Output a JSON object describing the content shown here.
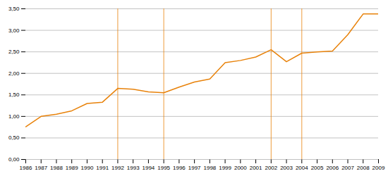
{
  "chart_data": {
    "type": "line",
    "x": [
      1986,
      1987,
      1988,
      1989,
      1990,
      1991,
      1992,
      1993,
      1994,
      1995,
      1996,
      1997,
      1998,
      1999,
      2000,
      2001,
      2002,
      2003,
      2004,
      2005,
      2006,
      2007,
      2008,
      2009
    ],
    "values": [
      0.76,
      1.0,
      1.05,
      1.13,
      1.3,
      1.33,
      1.65,
      1.63,
      1.57,
      1.55,
      1.68,
      1.8,
      1.87,
      2.25,
      2.3,
      2.38,
      2.55,
      2.27,
      2.47,
      2.5,
      2.52,
      2.9,
      3.38,
      3.38
    ],
    "color": "#E8820A",
    "xlim": [
      1986,
      2009
    ],
    "xticks": [
      1986,
      1987,
      1988,
      1989,
      1990,
      1991,
      1992,
      1993,
      1994,
      1995,
      1996,
      1997,
      1998,
      1999,
      2000,
      2001,
      2002,
      2003,
      2004,
      2005,
      2006,
      2007,
      2008,
      2009
    ],
    "ylim": [
      0.0,
      3.5
    ],
    "yticks": [
      {
        "value": 0.0,
        "label": "0,00"
      },
      {
        "value": 0.5,
        "label": "0,50"
      },
      {
        "value": 1.0,
        "label": "1,00"
      },
      {
        "value": 1.5,
        "label": "1,50"
      },
      {
        "value": 2.0,
        "label": "2,00"
      },
      {
        "value": 2.5,
        "label": "2,50"
      },
      {
        "value": 3.0,
        "label": "3,00"
      },
      {
        "value": 3.5,
        "label": "3,50"
      }
    ],
    "vlines": [
      1992,
      1995,
      2002,
      2004
    ],
    "grid": true
  }
}
